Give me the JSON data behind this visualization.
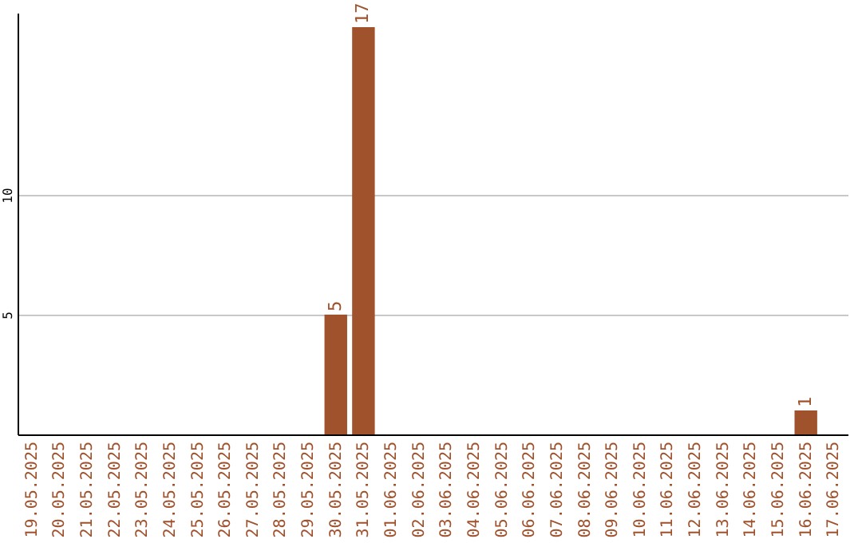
{
  "chart_data": {
    "type": "bar",
    "categories": [
      "19.05.2025",
      "20.05.2025",
      "21.05.2025",
      "22.05.2025",
      "23.05.2025",
      "24.05.2025",
      "25.05.2025",
      "26.05.2025",
      "27.05.2025",
      "28.05.2025",
      "29.05.2025",
      "30.05.2025",
      "31.05.2025",
      "01.06.2025",
      "02.06.2025",
      "03.06.2025",
      "04.06.2025",
      "05.06.2025",
      "06.06.2025",
      "07.06.2025",
      "08.06.2025",
      "09.06.2025",
      "10.06.2025",
      "11.06.2025",
      "12.06.2025",
      "13.06.2025",
      "14.06.2025",
      "15.06.2025",
      "16.06.2025",
      "17.06.2025"
    ],
    "values": [
      0,
      0,
      0,
      0,
      0,
      0,
      0,
      0,
      0,
      0,
      0,
      5,
      17,
      0,
      0,
      0,
      0,
      0,
      0,
      0,
      0,
      0,
      0,
      0,
      0,
      0,
      0,
      0,
      1,
      0
    ],
    "value_labels": [
      null,
      null,
      null,
      null,
      null,
      null,
      null,
      null,
      null,
      null,
      null,
      "5",
      "17",
      null,
      null,
      null,
      null,
      null,
      null,
      null,
      null,
      null,
      null,
      null,
      null,
      null,
      null,
      null,
      "1",
      null
    ],
    "color": "#a0522d",
    "ylim": [
      0,
      17.6
    ],
    "yticks": [
      5,
      10
    ],
    "grid": "y"
  }
}
